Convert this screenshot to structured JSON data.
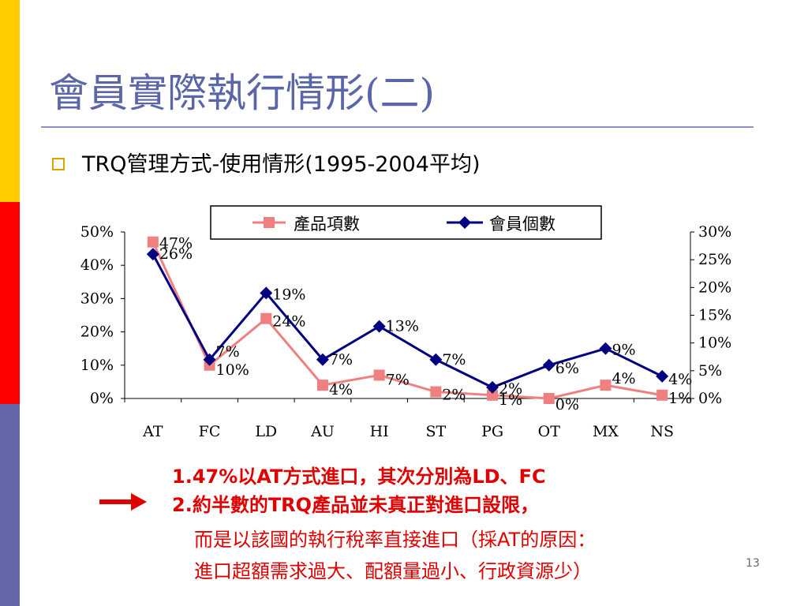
{
  "slide": {
    "title": "會員實際執行情形(二)",
    "bullet": "TRQ管理方式-使用情形(1995-2004平均)",
    "side_colors": [
      "#ffcc00",
      "#ff0000",
      "#6666aa"
    ],
    "title_color": "#5b66a8",
    "page_number": "13"
  },
  "notes": {
    "line1": "1.47%以AT方式進口，其次分別為LD、FC",
    "line2": "2.約半數的TRQ產品並未真正對進口設限，",
    "line3": "而是以該國的執行稅率直接進口（採AT的原因：",
    "line4": "進口超額需求過大、配額量過小、行政資源少）",
    "arrow_icon": "right-arrow-icon",
    "color": "#e00000"
  },
  "chart_data": {
    "type": "line",
    "categories": [
      "AT",
      "FC",
      "LD",
      "AU",
      "HI",
      "ST",
      "PG",
      "OT",
      "MX",
      "NS"
    ],
    "series": [
      {
        "name": "產品項數",
        "axis": "left",
        "values": [
          47,
          10,
          24,
          4,
          7,
          2,
          1,
          0,
          4,
          1
        ],
        "labels": [
          "47%",
          "10%",
          "24%",
          "4%",
          "7%",
          "2%",
          "1%",
          "0%",
          "4%",
          "1%"
        ],
        "color": "#f08080",
        "marker": "square"
      },
      {
        "name": "會員個數",
        "axis": "right",
        "values": [
          26,
          7,
          19,
          7,
          13,
          7,
          2,
          6,
          9,
          4
        ],
        "labels": [
          "26%",
          "7%",
          "19%",
          "7%",
          "13%",
          "7%",
          "2%",
          "6%",
          "9%",
          "4%"
        ],
        "color": "#000080",
        "marker": "diamond"
      }
    ],
    "y_left": {
      "ylim": [
        0,
        50
      ],
      "ticks": [
        "0%",
        "10%",
        "20%",
        "30%",
        "40%",
        "50%"
      ]
    },
    "y_right": {
      "ylim": [
        0,
        30
      ],
      "ticks": [
        "0%",
        "5%",
        "10%",
        "15%",
        "20%",
        "25%",
        "30%"
      ]
    },
    "legend_position": "top",
    "grid": false
  }
}
